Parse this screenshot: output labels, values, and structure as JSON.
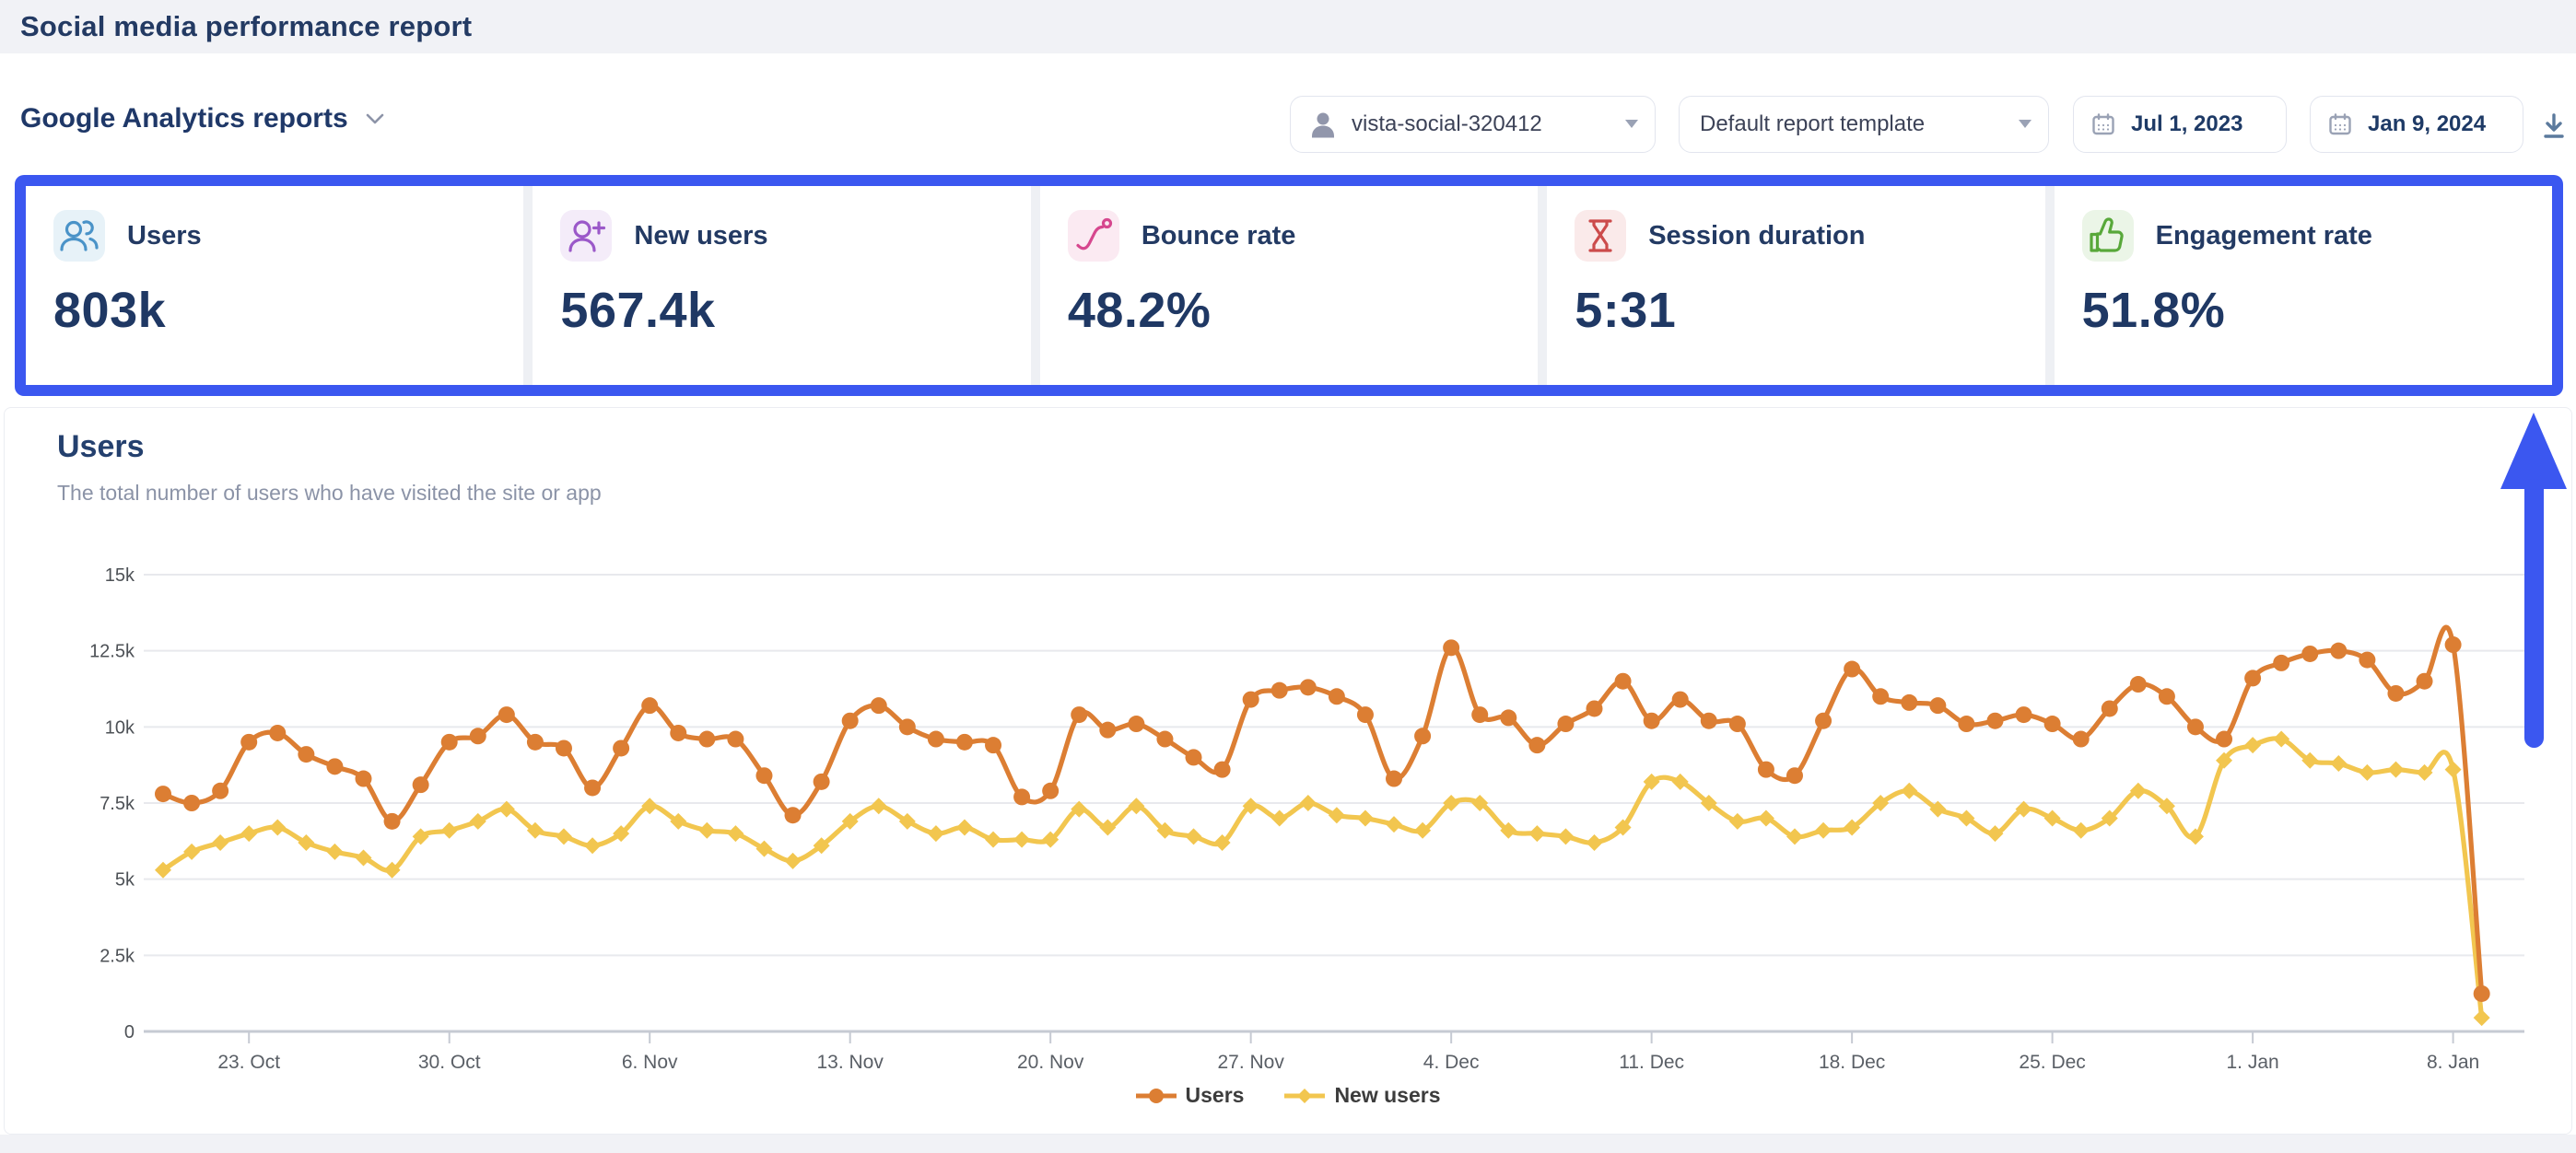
{
  "header": {
    "title": "Social media performance report"
  },
  "toolbar": {
    "section_label": "Google Analytics reports",
    "profile_value": "vista-social-320412",
    "template_value": "Default report template",
    "date_from": "Jul 1, 2023",
    "date_to": "Jan 9, 2024"
  },
  "annotation": {
    "color": "#3b57f0"
  },
  "kpis": [
    {
      "name": "users",
      "label": "Users",
      "value": "803k",
      "icon": "users-icon",
      "color": "#4a93c8",
      "bg": "#e7f2f8"
    },
    {
      "name": "new-users",
      "label": "New users",
      "value": "567.4k",
      "icon": "new-user-icon",
      "color": "#9b59c9",
      "bg": "#f4ecf9"
    },
    {
      "name": "bounce-rate",
      "label": "Bounce rate",
      "value": "48.2%",
      "icon": "bounce-icon",
      "color": "#d6478e",
      "bg": "#fbeaf2"
    },
    {
      "name": "session-duration",
      "label": "Session duration",
      "value": "5:31",
      "icon": "hourglass-icon",
      "color": "#cc4b4b",
      "bg": "#faeaea"
    },
    {
      "name": "engagement-rate",
      "label": "Engagement rate",
      "value": "51.8%",
      "icon": "thumbs-up-icon",
      "color": "#58a83a",
      "bg": "#ebf5e7"
    }
  ],
  "chart": {
    "title": "Users",
    "subtitle": "The total number of users who have visited the site or app"
  },
  "chart_data": {
    "type": "line",
    "x_unit": "day",
    "x_start": "2023-10-20",
    "x_end": "2024-01-09",
    "ylim": [
      0,
      15000
    ],
    "grid": true,
    "legend_position": "bottom",
    "yticks": [
      {
        "value": 0,
        "label": "0"
      },
      {
        "value": 2500,
        "label": "2.5k"
      },
      {
        "value": 5000,
        "label": "5k"
      },
      {
        "value": 7500,
        "label": "7.5k"
      },
      {
        "value": 10000,
        "label": "10k"
      },
      {
        "value": 12500,
        "label": "12.5k"
      },
      {
        "value": 15000,
        "label": "15k"
      }
    ],
    "xticks": [
      {
        "index": 3,
        "label": "23. Oct"
      },
      {
        "index": 10,
        "label": "30. Oct"
      },
      {
        "index": 17,
        "label": "6. Nov"
      },
      {
        "index": 24,
        "label": "13. Nov"
      },
      {
        "index": 31,
        "label": "20. Nov"
      },
      {
        "index": 38,
        "label": "27. Nov"
      },
      {
        "index": 45,
        "label": "4. Dec"
      },
      {
        "index": 52,
        "label": "11. Dec"
      },
      {
        "index": 59,
        "label": "18. Dec"
      },
      {
        "index": 66,
        "label": "25. Dec"
      },
      {
        "index": 73,
        "label": "1. Jan"
      },
      {
        "index": 80,
        "label": "8. Jan"
      }
    ],
    "series": [
      {
        "name": "Users",
        "color": "#DC7E33",
        "marker": "circle",
        "values": [
          7800,
          7500,
          7900,
          9500,
          9800,
          9100,
          8700,
          8300,
          6900,
          8100,
          9500,
          9700,
          10400,
          9500,
          9300,
          8000,
          9300,
          10700,
          9800,
          9600,
          9600,
          8400,
          7100,
          8200,
          10200,
          10700,
          10000,
          9600,
          9500,
          9400,
          7700,
          7900,
          10400,
          9900,
          10100,
          9600,
          9000,
          8600,
          10900,
          11200,
          11300,
          11000,
          10400,
          8300,
          9700,
          12600,
          10400,
          10300,
          9400,
          10100,
          10600,
          11500,
          10200,
          10900,
          10200,
          10100,
          8600,
          8400,
          10200,
          11900,
          11000,
          10800,
          10700,
          10100,
          10200,
          10400,
          10100,
          9600,
          10600,
          11400,
          11000,
          10000,
          9600,
          11600,
          12100,
          12400,
          12500,
          12200,
          11100,
          11500,
          12700,
          1240
        ]
      },
      {
        "name": "New users",
        "color": "#F2C64F",
        "marker": "diamond",
        "values": [
          5300,
          5900,
          6200,
          6500,
          6700,
          6200,
          5900,
          5700,
          5300,
          6400,
          6600,
          6900,
          7300,
          6600,
          6400,
          6100,
          6500,
          7400,
          6900,
          6600,
          6500,
          6000,
          5600,
          6100,
          6900,
          7400,
          6900,
          6500,
          6700,
          6300,
          6300,
          6300,
          7300,
          6700,
          7400,
          6600,
          6400,
          6200,
          7400,
          7000,
          7500,
          7100,
          7000,
          6800,
          6600,
          7500,
          7500,
          6600,
          6500,
          6400,
          6200,
          6700,
          8200,
          8200,
          7500,
          6900,
          7000,
          6400,
          6600,
          6700,
          7500,
          7900,
          7300,
          7000,
          6500,
          7300,
          7000,
          6600,
          7000,
          7900,
          7400,
          6400,
          8900,
          9400,
          9600,
          8900,
          8800,
          8500,
          8600,
          8500,
          8600,
          450
        ]
      }
    ]
  }
}
